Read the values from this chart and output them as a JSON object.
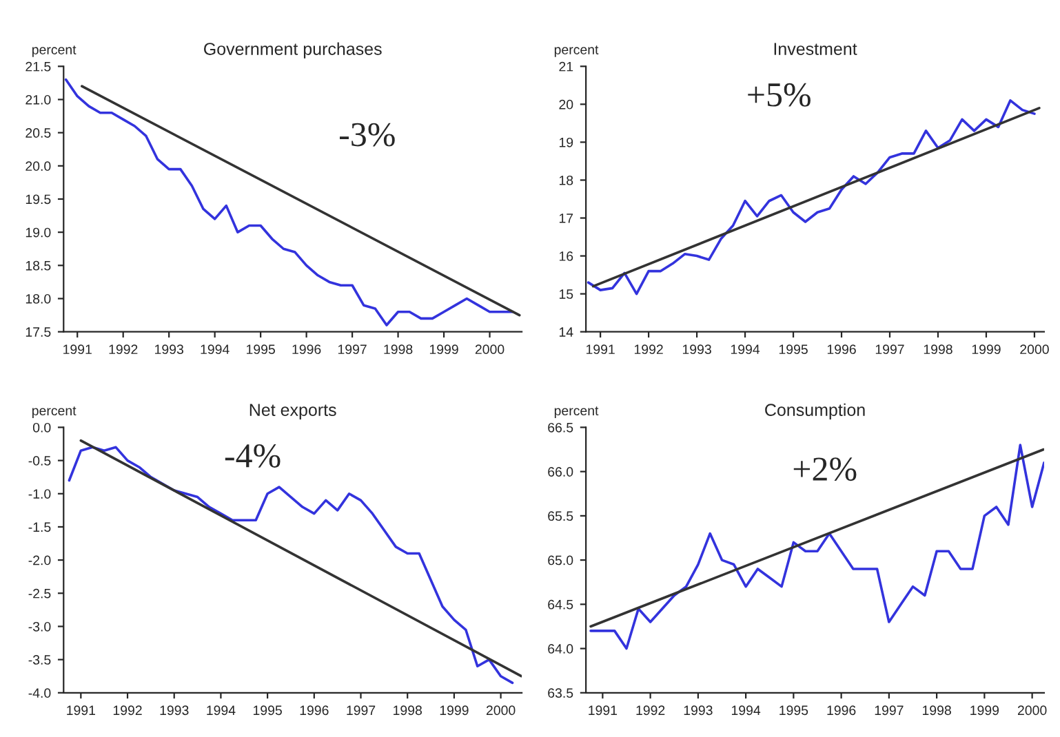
{
  "chart_data": [
    {
      "type": "line",
      "title": "Government purchases",
      "ylabel": "percent",
      "annotations": [
        "-3%"
      ],
      "xlim": [
        1990.95,
        2000.95
      ],
      "ylim": [
        17.5,
        21.5
      ],
      "yticks": [
        17.5,
        {
          "value": 18,
          "label": "18.0"
        },
        18.5,
        {
          "value": 19,
          "label": "19.0"
        },
        19.5,
        {
          "value": 20,
          "label": "20.0"
        },
        20.5,
        {
          "value": 21,
          "label": "21.0"
        },
        21.5
      ],
      "xticks": [
        {
          "value": 1991.25,
          "label": "1991"
        },
        {
          "value": 1992.25,
          "label": "1992"
        },
        {
          "value": 1993.25,
          "label": "1993"
        },
        {
          "value": 1994.25,
          "label": "1994"
        },
        {
          "value": 1995.25,
          "label": "1995"
        },
        {
          "value": 1996.25,
          "label": "1996"
        },
        {
          "value": 1997.25,
          "label": "1997"
        },
        {
          "value": 1998.25,
          "label": "1998"
        },
        {
          "value": 1999.25,
          "label": "1999"
        },
        {
          "value": 2000.25,
          "label": "2000"
        }
      ],
      "grid": false,
      "legend": false,
      "series": [
        {
          "color": "#3333dd",
          "x": [
            1991.0,
            1991.25,
            1991.5,
            1991.75,
            1992.0,
            1992.25,
            1992.5,
            1992.75,
            1993.0,
            1993.25,
            1993.5,
            1993.75,
            1994.0,
            1994.25,
            1994.5,
            1994.75,
            1995.0,
            1995.25,
            1995.5,
            1995.75,
            1996.0,
            1996.25,
            1996.5,
            1996.75,
            1997.0,
            1997.25,
            1997.5,
            1997.75,
            1998.0,
            1998.25,
            1998.5,
            1998.75,
            1999.0,
            1999.25,
            1999.5,
            1999.75,
            2000.0,
            2000.25,
            2000.5,
            2000.75
          ],
          "values": [
            21.3,
            21.05,
            20.9,
            20.8,
            20.8,
            20.7,
            20.6,
            20.45,
            20.1,
            19.95,
            19.95,
            19.7,
            19.35,
            19.2,
            19.4,
            19.0,
            19.1,
            19.1,
            18.9,
            18.75,
            18.7,
            18.5,
            18.35,
            18.25,
            18.2,
            18.2,
            17.9,
            17.85,
            17.6,
            17.8,
            17.8,
            17.7,
            17.7,
            17.8,
            17.9,
            18.0,
            17.9,
            17.8,
            17.8,
            17.8
          ]
        },
        {
          "type": "line",
          "color": "#333333",
          "x": [
            1991.35,
            2000.9
          ],
          "values": [
            21.2,
            17.75
          ]
        }
      ]
    },
    {
      "type": "line",
      "title": "Investment",
      "ylabel": "percent",
      "annotations": [
        "+5%"
      ],
      "xlim": [
        1990.95,
        2000.45
      ],
      "ylim": [
        14,
        21
      ],
      "yticks": [
        14,
        15,
        16,
        17,
        18,
        19,
        20,
        21
      ],
      "xticks": [
        {
          "value": 1991.25,
          "label": "1991"
        },
        {
          "value": 1992.25,
          "label": "1992"
        },
        {
          "value": 1993.25,
          "label": "1993"
        },
        {
          "value": 1994.25,
          "label": "1994"
        },
        {
          "value": 1995.25,
          "label": "1995"
        },
        {
          "value": 1996.25,
          "label": "1996"
        },
        {
          "value": 1997.25,
          "label": "1997"
        },
        {
          "value": 1998.25,
          "label": "1998"
        },
        {
          "value": 1999.25,
          "label": "1999"
        },
        {
          "value": 2000.25,
          "label": "2000"
        }
      ],
      "grid": false,
      "legend": false,
      "series": [
        {
          "color": "#3333dd",
          "x": [
            1991.0,
            1991.25,
            1991.5,
            1991.75,
            1992.0,
            1992.25,
            1992.5,
            1992.75,
            1993.0,
            1993.25,
            1993.5,
            1993.75,
            1994.0,
            1994.25,
            1994.5,
            1994.75,
            1995.0,
            1995.25,
            1995.5,
            1995.75,
            1996.0,
            1996.25,
            1996.5,
            1996.75,
            1997.0,
            1997.25,
            1997.5,
            1997.75,
            1998.0,
            1998.25,
            1998.5,
            1998.75,
            1999.0,
            1999.25,
            1999.5,
            1999.75,
            2000.0,
            2000.25
          ],
          "values": [
            15.3,
            15.1,
            15.15,
            15.55,
            15.0,
            15.6,
            15.6,
            15.8,
            16.05,
            16.0,
            15.9,
            16.45,
            16.8,
            17.45,
            17.05,
            17.45,
            17.6,
            17.15,
            16.9,
            17.15,
            17.25,
            17.75,
            18.1,
            17.9,
            18.2,
            18.6,
            18.7,
            18.7,
            19.3,
            18.85,
            19.05,
            19.6,
            19.3,
            19.6,
            19.4,
            20.1,
            19.85,
            19.75
          ]
        },
        {
          "type": "line",
          "color": "#333333",
          "x": [
            1991.1,
            2000.35
          ],
          "values": [
            15.2,
            19.9
          ]
        }
      ]
    },
    {
      "type": "line",
      "title": "Net exports",
      "ylabel": "percent",
      "annotations": [
        "-4%"
      ],
      "xlim": [
        1990.88,
        2000.7
      ],
      "ylim": [
        -4.0,
        0.0
      ],
      "yticks": [
        {
          "value": -4,
          "label": "-4.0"
        },
        -3.5,
        {
          "value": -3,
          "label": "-3.0"
        },
        -2.5,
        {
          "value": -2,
          "label": "-2.0"
        },
        -1.5,
        {
          "value": -1,
          "label": "-1.0"
        },
        -0.5,
        {
          "value": 0,
          "label": "0.0"
        }
      ],
      "xticks": [
        {
          "value": 1991.25,
          "label": "1991"
        },
        {
          "value": 1992.25,
          "label": "1992"
        },
        {
          "value": 1993.25,
          "label": "1993"
        },
        {
          "value": 1994.25,
          "label": "1994"
        },
        {
          "value": 1995.25,
          "label": "1995"
        },
        {
          "value": 1996.25,
          "label": "1996"
        },
        {
          "value": 1997.25,
          "label": "1997"
        },
        {
          "value": 1998.25,
          "label": "1998"
        },
        {
          "value": 1999.25,
          "label": "1999"
        },
        {
          "value": 2000.25,
          "label": "2000"
        }
      ],
      "grid": false,
      "legend": false,
      "series": [
        {
          "color": "#3333dd",
          "x": [
            1991.0,
            1991.25,
            1991.5,
            1991.75,
            1992.0,
            1992.25,
            1992.5,
            1992.75,
            1993.0,
            1993.25,
            1993.5,
            1993.75,
            1994.0,
            1994.25,
            1994.5,
            1994.75,
            1995.0,
            1995.25,
            1995.5,
            1995.75,
            1996.0,
            1996.25,
            1996.5,
            1996.75,
            1997.0,
            1997.25,
            1997.5,
            1997.75,
            1998.0,
            1998.25,
            1998.5,
            1998.75,
            1999.0,
            1999.25,
            1999.5,
            1999.75,
            2000.0,
            2000.25,
            2000.5
          ],
          "values": [
            -0.8,
            -0.35,
            -0.3,
            -0.35,
            -0.3,
            -0.5,
            -0.6,
            -0.75,
            -0.85,
            -0.95,
            -1.0,
            -1.05,
            -1.2,
            -1.3,
            -1.4,
            -1.4,
            -1.4,
            -1.0,
            -0.9,
            -1.05,
            -1.2,
            -1.3,
            -1.1,
            -1.25,
            -1.0,
            -1.1,
            -1.3,
            -1.55,
            -1.8,
            -1.9,
            -1.9,
            -2.3,
            -2.7,
            -2.9,
            -3.05,
            -3.6,
            -3.5,
            -3.75,
            -3.85
          ]
        },
        {
          "type": "line",
          "color": "#333333",
          "x": [
            1991.25,
            2000.69
          ],
          "values": [
            -0.2,
            -3.75
          ]
        }
      ]
    },
    {
      "type": "line",
      "title": "Consumption",
      "ylabel": "percent",
      "annotations": [
        "+2%"
      ],
      "xlim": [
        1990.9,
        2000.5
      ],
      "ylim": [
        63.5,
        66.5
      ],
      "yticks": [
        63.5,
        {
          "value": 64,
          "label": "64.0"
        },
        64.5,
        {
          "value": 65,
          "label": "65.0"
        },
        65.5,
        {
          "value": 66,
          "label": "66.0"
        },
        66.5
      ],
      "xticks": [
        {
          "value": 1991.25,
          "label": "1991"
        },
        {
          "value": 1992.25,
          "label": "1992"
        },
        {
          "value": 1993.25,
          "label": "1993"
        },
        {
          "value": 1994.25,
          "label": "1994"
        },
        {
          "value": 1995.25,
          "label": "1995"
        },
        {
          "value": 1996.25,
          "label": "1996"
        },
        {
          "value": 1997.25,
          "label": "1997"
        },
        {
          "value": 1998.25,
          "label": "1998"
        },
        {
          "value": 1999.25,
          "label": "1999"
        },
        {
          "value": 2000.25,
          "label": "2000"
        }
      ],
      "grid": false,
      "legend": false,
      "series": [
        {
          "color": "#3333dd",
          "x": [
            1991.0,
            1991.25,
            1991.5,
            1991.75,
            1992.0,
            1992.25,
            1992.5,
            1992.75,
            1993.0,
            1993.25,
            1993.5,
            1993.75,
            1994.0,
            1994.25,
            1994.5,
            1994.75,
            1995.0,
            1995.25,
            1995.5,
            1995.75,
            1996.0,
            1996.25,
            1996.5,
            1996.75,
            1997.0,
            1997.25,
            1997.5,
            1997.75,
            1998.0,
            1998.25,
            1998.5,
            1998.75,
            1999.0,
            1999.25,
            1999.5,
            1999.75,
            2000.0,
            2000.25,
            2000.5
          ],
          "values": [
            64.2,
            64.2,
            64.2,
            64.0,
            64.45,
            64.3,
            64.45,
            64.6,
            64.7,
            64.95,
            65.3,
            65.0,
            64.95,
            64.7,
            64.9,
            64.8,
            64.7,
            65.2,
            65.1,
            65.1,
            65.3,
            65.1,
            64.9,
            64.9,
            64.9,
            64.3,
            64.5,
            64.7,
            64.6,
            65.1,
            65.1,
            64.9,
            64.9,
            65.5,
            65.6,
            65.4,
            66.3,
            65.6,
            66.1
          ]
        },
        {
          "type": "line",
          "color": "#333333",
          "x": [
            1991.0,
            2000.49
          ],
          "values": [
            64.25,
            66.25
          ]
        }
      ]
    }
  ]
}
